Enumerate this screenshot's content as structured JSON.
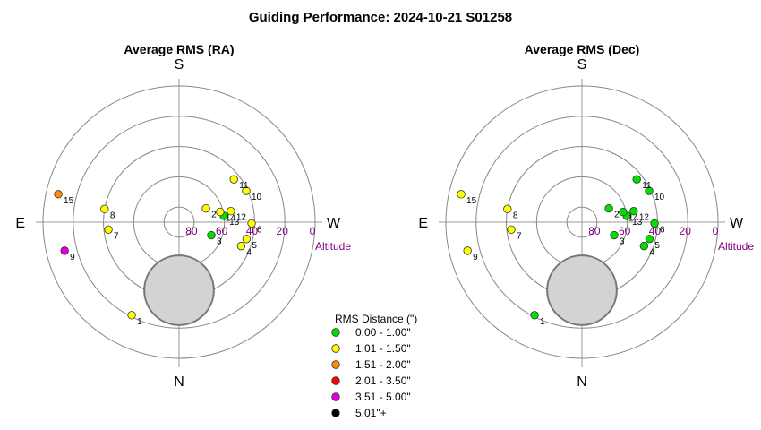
{
  "title": "Guiding Performance: 2024-10-21 S01258",
  "chart_data": [
    {
      "type": "scatter",
      "coordinate_system": "polar (altitude radial, azimuth angular; S top, N bottom, E left, W right)",
      "title": "Average RMS (RA)",
      "directions": {
        "top": "S",
        "bottom": "N",
        "left": "E",
        "right": "W"
      },
      "altitude_ticks": [
        "80",
        "60",
        "40",
        "20",
        "0"
      ],
      "altitude_label": "Altitude",
      "points": [
        {
          "label": "1",
          "alt": 21,
          "az": 27,
          "rms_class": 1
        },
        {
          "label": "2",
          "alt": 70,
          "az": 243,
          "rms_class": 1
        },
        {
          "label": "3",
          "alt": 67,
          "az": 292,
          "rms_class": 0
        },
        {
          "label": "4",
          "alt": 46,
          "az": 291,
          "rms_class": 1
        },
        {
          "label": "5",
          "alt": 44,
          "az": 284,
          "rms_class": 1
        },
        {
          "label": "6",
          "alt": 42,
          "az": 271,
          "rms_class": 1
        },
        {
          "label": "7",
          "alt": 43,
          "az": 84,
          "rms_class": 1
        },
        {
          "label": "8",
          "alt": 40,
          "az": 100,
          "rms_class": 1
        },
        {
          "label": "9",
          "alt": 12,
          "az": 76,
          "rms_class": 4
        },
        {
          "label": "10",
          "alt": 41,
          "az": 245,
          "rms_class": 1
        },
        {
          "label": "11",
          "alt": 44,
          "az": 232,
          "rms_class": 1
        },
        {
          "label": "12",
          "alt": 55,
          "az": 258,
          "rms_class": 1
        },
        {
          "label": "13",
          "alt": 60,
          "az": 262,
          "rms_class": 0
        },
        {
          "label": "14",
          "alt": 62,
          "az": 256,
          "rms_class": 1
        },
        {
          "label": "15",
          "alt": 8,
          "az": 103,
          "rms_class": 2
        }
      ]
    },
    {
      "type": "scatter",
      "coordinate_system": "polar (altitude radial, azimuth angular; S top, N bottom, E left, W right)",
      "title": "Average RMS (Dec)",
      "directions": {
        "top": "S",
        "bottom": "N",
        "left": "E",
        "right": "W"
      },
      "altitude_ticks": [
        "80",
        "60",
        "40",
        "20",
        "0"
      ],
      "altitude_label": "Altitude",
      "points": [
        {
          "label": "1",
          "alt": 21,
          "az": 27,
          "rms_class": 0
        },
        {
          "label": "2",
          "alt": 70,
          "az": 243,
          "rms_class": 0
        },
        {
          "label": "3",
          "alt": 67,
          "az": 292,
          "rms_class": 0
        },
        {
          "label": "4",
          "alt": 46,
          "az": 291,
          "rms_class": 0
        },
        {
          "label": "5",
          "alt": 44,
          "az": 284,
          "rms_class": 0
        },
        {
          "label": "6",
          "alt": 42,
          "az": 271,
          "rms_class": 0
        },
        {
          "label": "7",
          "alt": 43,
          "az": 84,
          "rms_class": 1
        },
        {
          "label": "8",
          "alt": 40,
          "az": 100,
          "rms_class": 1
        },
        {
          "label": "9",
          "alt": 12,
          "az": 76,
          "rms_class": 1
        },
        {
          "label": "10",
          "alt": 41,
          "az": 245,
          "rms_class": 0
        },
        {
          "label": "11",
          "alt": 44,
          "az": 232,
          "rms_class": 0
        },
        {
          "label": "12",
          "alt": 55,
          "az": 258,
          "rms_class": 0
        },
        {
          "label": "13",
          "alt": 60,
          "az": 262,
          "rms_class": 0
        },
        {
          "label": "14",
          "alt": 62,
          "az": 256,
          "rms_class": 0
        },
        {
          "label": "15",
          "alt": 8,
          "az": 103,
          "rms_class": 1
        }
      ]
    }
  ],
  "legend": {
    "title": "RMS Distance (\")",
    "items": [
      {
        "label": "0.00 - 1.00\"",
        "color": "#00e000"
      },
      {
        "label": "1.01 - 1.50\"",
        "color": "#ffff00"
      },
      {
        "label": "1.51 - 2.00\"",
        "color": "#ff8c00"
      },
      {
        "label": "2.01 - 3.50\"",
        "color": "#ff0000"
      },
      {
        "label": "3.51 - 5.00\"",
        "color": "#e000e0"
      },
      {
        "label": "5.01\"+",
        "color": "#000000"
      }
    ]
  },
  "moon_exclusion": {
    "alt": 45,
    "az": 0,
    "radius_alt_deg": 23
  }
}
